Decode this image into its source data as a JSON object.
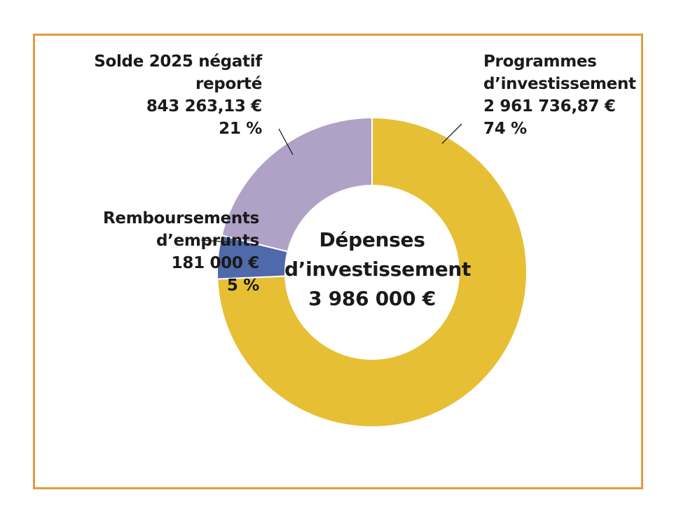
{
  "chart_data": {
    "type": "pie",
    "variant": "donut",
    "center_label": {
      "line1": "Dépenses",
      "line2": "d’investissement",
      "line3": "3 986 000 €"
    },
    "slices": [
      {
        "label_lines": [
          "Programmes",
          "d’investissement"
        ],
        "amount": "2 961 736,87 €",
        "percent_label": "74 %",
        "value": 2961736.87,
        "color": "#e6bf35"
      },
      {
        "label_lines": [
          "Remboursements",
          "d’emprunts"
        ],
        "amount": "181 000 €",
        "percent_label": "5 %",
        "value": 181000,
        "color": "#4f69ab"
      },
      {
        "label_lines": [
          "Solde 2025 négatif",
          "reporté"
        ],
        "amount": "843 263,13 €",
        "percent_label": "21 %",
        "value": 843263.13,
        "color": "#b0a1c7"
      }
    ],
    "border_color": "#e29a3f"
  }
}
